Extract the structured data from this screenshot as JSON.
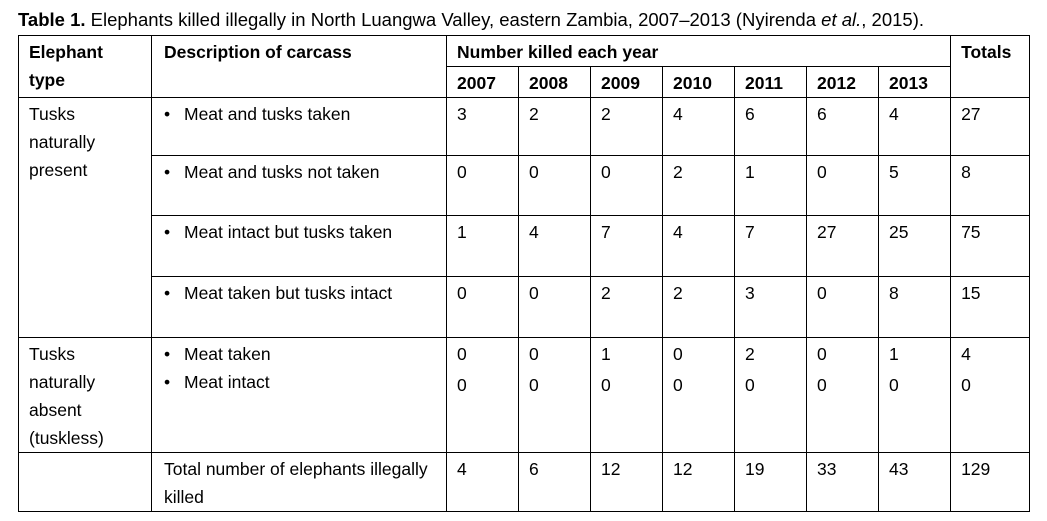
{
  "caption": {
    "label": "Table 1.",
    "text_before": "Elephants killed illegally in North Luangwa Valley, eastern Zambia, 2007–2013 (Nyirenda ",
    "text_italic": "et al.",
    "text_after": ", 2015)."
  },
  "header": {
    "elephant_type": "Elephant type",
    "description": "Description of carcass",
    "number_killed": "Number killed each year",
    "totals": "Totals",
    "years": [
      "2007",
      "2008",
      "2009",
      "2010",
      "2011",
      "2012",
      "2013"
    ]
  },
  "bullet": "•",
  "groups": {
    "present": "Tusks naturally present",
    "absent": "Tusks naturally absent (tuskless)"
  },
  "rows": [
    {
      "desc": "Meat and tusks taken",
      "values": [
        "3",
        "2",
        "2",
        "4",
        "6",
        "6",
        "4"
      ],
      "total": "27"
    },
    {
      "desc": "Meat and tusks not taken",
      "values": [
        "0",
        "0",
        "0",
        "2",
        "1",
        "0",
        "5"
      ],
      "total": "8"
    },
    {
      "desc": "Meat intact but tusks taken",
      "values": [
        "1",
        "4",
        "7",
        "4",
        "7",
        "27",
        "25"
      ],
      "total": "75"
    },
    {
      "desc": "Meat taken but tusks intact",
      "values": [
        "0",
        "0",
        "2",
        "2",
        "3",
        "0",
        "8"
      ],
      "total": "15"
    },
    {
      "desc": "Meat taken",
      "values": [
        "0",
        "0",
        "1",
        "0",
        "2",
        "0",
        "1"
      ],
      "total": "4"
    },
    {
      "desc": "Meat intact",
      "values": [
        "0",
        "0",
        "0",
        "0",
        "0",
        "0",
        "0"
      ],
      "total": "0"
    }
  ],
  "total_row": {
    "label": "Total number of elephants illegally killed",
    "values": [
      "4",
      "6",
      "12",
      "12",
      "19",
      "33",
      "43"
    ],
    "total": "129"
  }
}
